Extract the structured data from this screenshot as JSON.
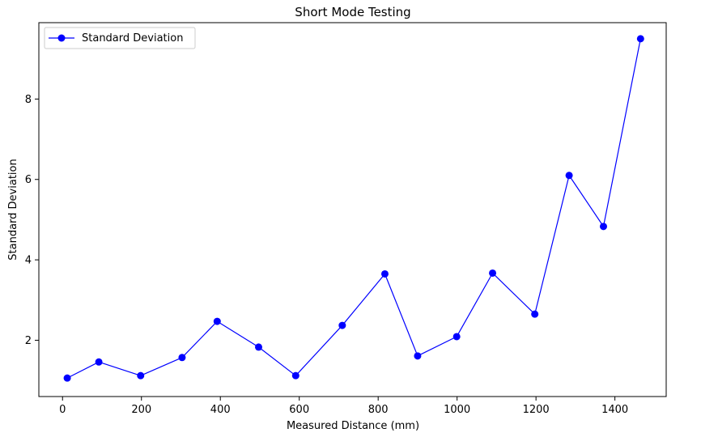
{
  "chart_data": {
    "type": "line",
    "title": "Short Mode Testing",
    "xlabel": "Measured Distance (mm)",
    "ylabel": "Standard Deviation",
    "xlim": [
      -60,
      1530
    ],
    "ylim": [
      0.6,
      9.9
    ],
    "xticks": [
      0,
      200,
      400,
      600,
      800,
      1000,
      1200,
      1400
    ],
    "yticks": [
      2,
      4,
      6,
      8
    ],
    "grid": false,
    "legend_position": "top-left",
    "series": [
      {
        "name": "Standard Deviation",
        "color": "#0000ff",
        "marker": "circle",
        "x": [
          12,
          92,
          198,
          303,
          392,
          497,
          591,
          709,
          817,
          900,
          999,
          1090,
          1197,
          1284,
          1371,
          1465
        ],
        "y": [
          1.06,
          1.46,
          1.12,
          1.57,
          2.47,
          1.83,
          1.12,
          2.37,
          3.65,
          1.61,
          2.09,
          3.67,
          2.65,
          6.1,
          4.83,
          9.5
        ]
      }
    ]
  }
}
